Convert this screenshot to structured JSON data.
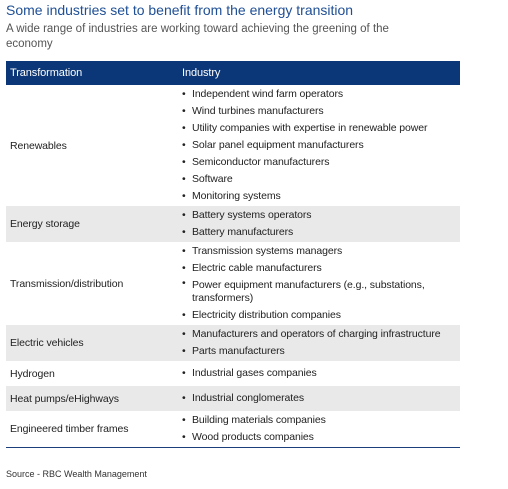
{
  "header": {
    "title": "Some industries set to benefit from the energy transition",
    "subtitle": "A wide range of industries are working toward achieving the greening of the economy"
  },
  "table": {
    "columns": [
      "Transformation",
      "Industry"
    ],
    "rows": [
      {
        "transformation": "Renewables",
        "industries": [
          "Independent wind farm operators",
          "Wind turbines manufacturers",
          "Utility companies with expertise in renewable power",
          "Solar panel equipment manufacturers",
          "Semiconductor manufacturers",
          "Software",
          "Monitoring systems"
        ]
      },
      {
        "transformation": "Energy storage",
        "industries": [
          "Battery systems operators",
          "Battery manufacturers"
        ]
      },
      {
        "transformation": "Transmission/distribution",
        "industries": [
          "Transmission systems managers",
          "Electric cable manufacturers",
          "Power equipment manufacturers (e.g., substations, transformers)",
          "Electricity distribution companies"
        ]
      },
      {
        "transformation": "Electric vehicles",
        "industries": [
          "Manufacturers and operators of charging infrastructure",
          "Parts manufacturers"
        ]
      },
      {
        "transformation": "Hydrogen",
        "industries": [
          "Industrial gases companies"
        ]
      },
      {
        "transformation": "Heat pumps/eHighways",
        "industries": [
          "Industrial conglomerates"
        ]
      },
      {
        "transformation": "Engineered timber frames",
        "industries": [
          "Building materials companies",
          "Wood products companies"
        ]
      }
    ]
  },
  "source": "Source - RBC Wealth Management"
}
